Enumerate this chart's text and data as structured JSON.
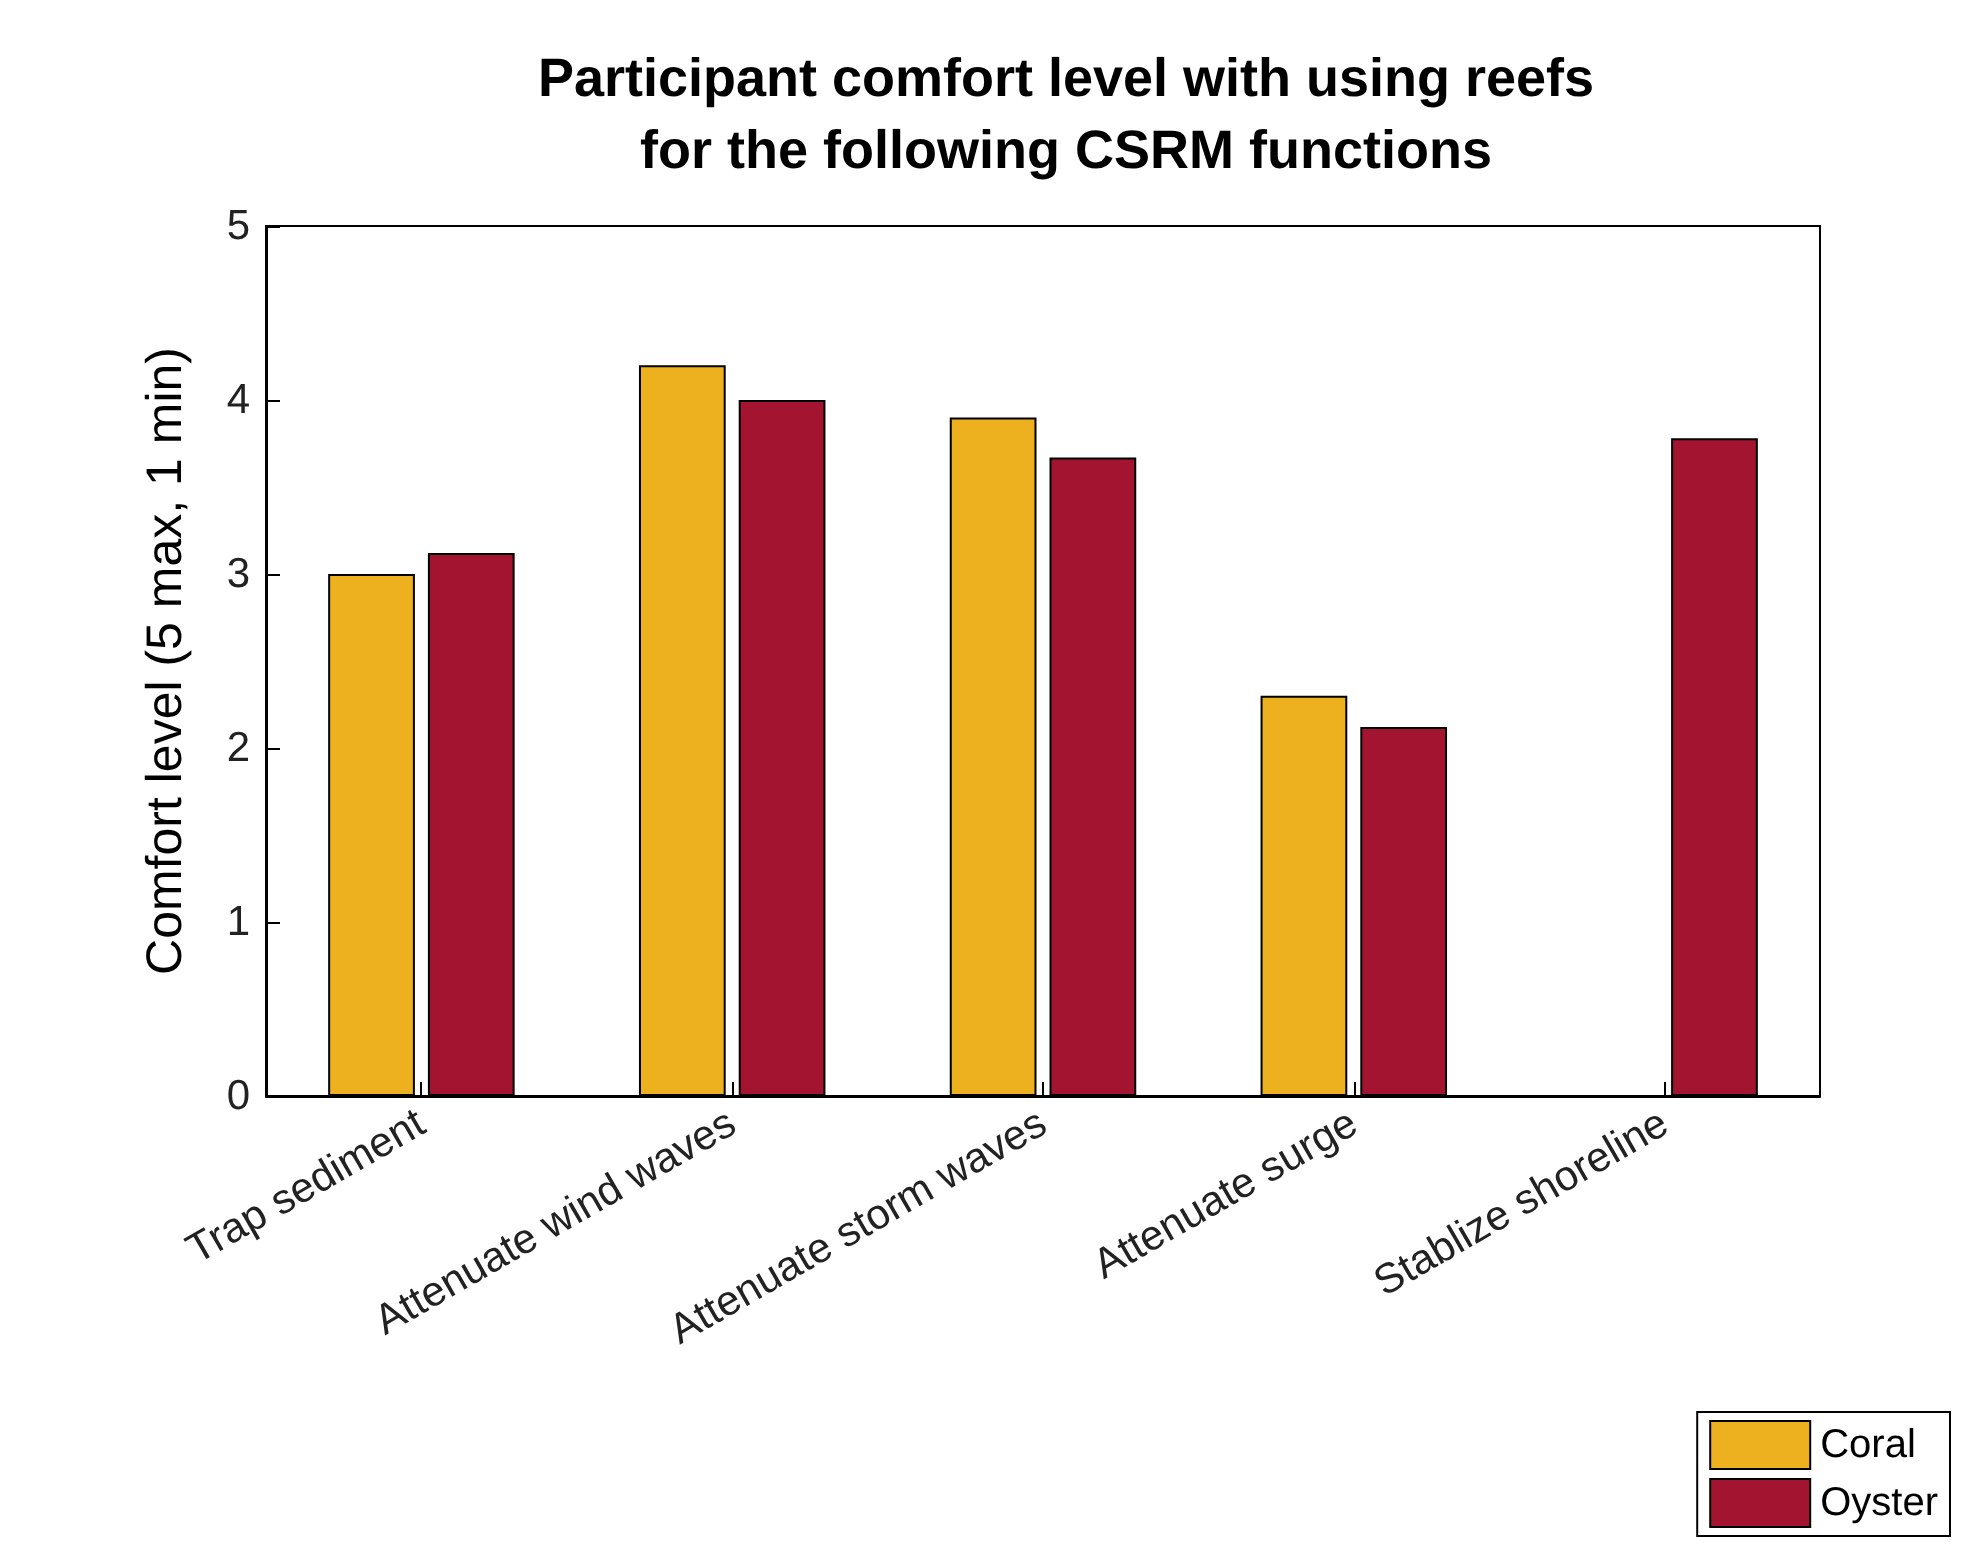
{
  "chart_data": {
    "type": "bar",
    "title": "Participant comfort level with using reefs\nfor the following CSRM functions",
    "ylabel": "Comfort level (5 max, 1 min)",
    "categories": [
      "Trap sediment",
      "Attenuate wind waves",
      "Attenuate storm waves",
      "Attenuate surge",
      "Stablize shoreline"
    ],
    "series": [
      {
        "name": "Coral",
        "color": "#edb120",
        "values": [
          3.0,
          4.2,
          3.9,
          2.3,
          null
        ]
      },
      {
        "name": "Oyster",
        "color": "#a2142f",
        "values": [
          3.12,
          4.0,
          3.67,
          2.12,
          3.78
        ]
      }
    ],
    "ylim": [
      0,
      5
    ],
    "yticks": [
      0,
      1,
      2,
      3,
      4,
      5
    ],
    "grid": false,
    "legend": "bottom right"
  }
}
